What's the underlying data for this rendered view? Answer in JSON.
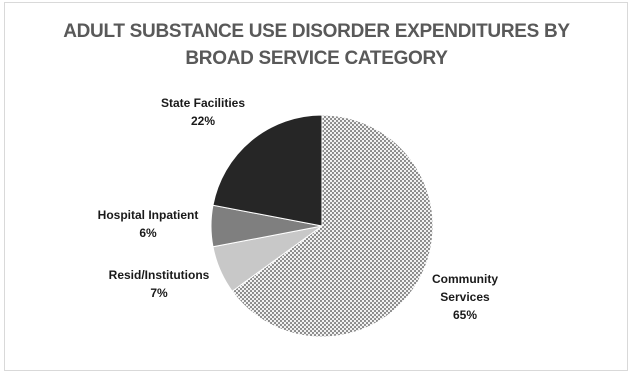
{
  "chart_data": {
    "type": "pie",
    "title_lines": [
      "ADULT SUBSTANCE USE DISORDER EXPENDITURES BY",
      "BROAD SERVICE CATEGORY"
    ],
    "slices": [
      {
        "label_lines": [
          "Community",
          "Services"
        ],
        "value": 65,
        "value_label": "65%",
        "color": "#9a9a9a",
        "pattern": "dots"
      },
      {
        "label_lines": [
          "Resid/Institutions"
        ],
        "value": 7,
        "value_label": "7%",
        "color": "#c8c8c8",
        "pattern": "none"
      },
      {
        "label_lines": [
          "Hospital Inpatient"
        ],
        "value": 6,
        "value_label": "6%",
        "color": "#7f7f7f",
        "pattern": "none"
      },
      {
        "label_lines": [
          "State Facilities"
        ],
        "value": 22,
        "value_label": "22%",
        "color": "#262626",
        "pattern": "none"
      }
    ],
    "start_angle_deg": 0,
    "direction": "clockwise",
    "legend": "none"
  }
}
